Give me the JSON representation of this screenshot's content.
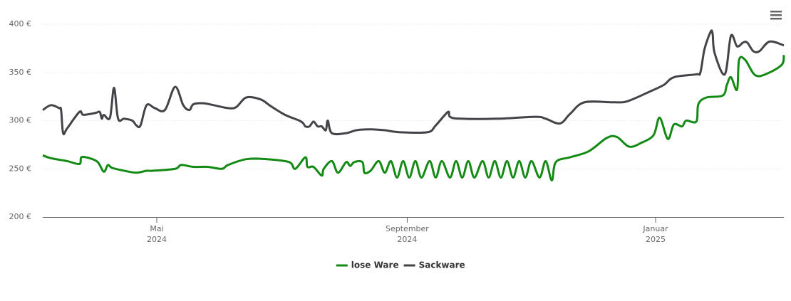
{
  "chart_data": {
    "type": "line",
    "xlim": [
      "2024-03-06",
      "2025-03-05"
    ],
    "ylim": [
      200,
      400
    ],
    "yticks": [
      {
        "value": 200,
        "label": "200 €"
      },
      {
        "value": 250,
        "label": "250 €"
      },
      {
        "value": 300,
        "label": "300 €"
      },
      {
        "value": 350,
        "label": "350 €"
      },
      {
        "value": 400,
        "label": "400 €"
      }
    ],
    "xticks": [
      {
        "value": "2024-05",
        "label": [
          "Mai",
          "2024"
        ]
      },
      {
        "value": "2024-09",
        "label": [
          "September",
          "2024"
        ]
      },
      {
        "value": "2025-01",
        "label": [
          "Januar",
          "2025"
        ]
      }
    ],
    "grid": true,
    "legend": "bottom",
    "series": [
      {
        "name": "lose Ware",
        "color": "#138a14",
        "x": [
          "2024-03-06",
          "2024-03-10",
          "2024-03-18",
          "2024-03-24",
          "2024-03-25",
          "2024-03-29",
          "2024-04-02",
          "2024-04-05",
          "2024-04-07",
          "2024-04-09",
          "2024-04-15",
          "2024-04-21",
          "2024-04-26",
          "2024-04-29",
          "2024-05-10",
          "2024-05-13",
          "2024-05-19",
          "2024-05-26",
          "2024-06-02",
          "2024-06-05",
          "2024-06-14",
          "2024-06-24",
          "2024-07-05",
          "2024-07-08",
          "2024-07-13",
          "2024-07-14",
          "2024-07-17",
          "2024-07-21",
          "2024-07-22",
          "2024-07-26",
          "2024-07-29",
          "2024-08-02",
          "2024-08-04",
          "2024-08-06",
          "2024-08-10",
          "2024-08-11",
          "2024-08-14",
          "2024-08-18",
          "2024-08-21",
          "2024-08-24",
          "2024-08-27",
          "2024-08-30",
          "2024-09-02",
          "2024-09-05",
          "2024-09-08",
          "2024-09-12",
          "2024-09-15",
          "2024-09-18",
          "2024-09-22",
          "2024-09-25",
          "2024-09-28",
          "2024-10-01",
          "2024-10-04",
          "2024-10-08",
          "2024-10-11",
          "2024-10-14",
          "2024-10-17",
          "2024-10-20",
          "2024-10-23",
          "2024-10-26",
          "2024-10-29",
          "2024-11-01",
          "2024-11-05",
          "2024-11-08",
          "2024-11-11",
          "2024-11-13",
          "2024-11-20",
          "2024-11-29",
          "2024-12-08",
          "2024-12-13",
          "2024-12-19",
          "2024-12-25",
          "2024-12-31",
          "2025-01-03",
          "2025-01-07",
          "2025-01-10",
          "2025-01-14",
          "2025-01-16",
          "2025-01-21",
          "2025-01-22",
          "2025-01-26",
          "2025-02-03",
          "2025-02-05",
          "2025-02-07",
          "2025-02-10",
          "2025-02-11",
          "2025-02-14",
          "2025-02-19",
          "2025-02-25",
          "2025-03-04",
          "2025-03-05"
        ],
        "values": [
          264,
          261,
          258,
          255,
          262,
          261,
          257,
          247,
          254,
          251,
          248,
          246,
          248,
          248,
          250,
          254,
          252,
          252,
          250,
          254,
          260,
          260,
          257,
          250,
          262,
          252,
          252,
          243,
          250,
          258,
          246,
          257,
          253,
          257,
          257,
          246,
          248,
          258,
          246,
          258,
          241,
          258,
          241,
          258,
          241,
          258,
          241,
          258,
          241,
          258,
          241,
          258,
          241,
          258,
          241,
          258,
          241,
          258,
          241,
          258,
          241,
          258,
          241,
          258,
          238,
          257,
          262,
          268,
          282,
          283,
          273,
          277,
          285,
          303,
          281,
          296,
          294,
          300,
          299,
          317,
          324,
          326,
          337,
          345,
          332,
          363,
          363,
          347,
          349,
          358,
          368
        ]
      },
      {
        "name": "Sackware",
        "color": "#434348",
        "x": [
          "2024-03-06",
          "2024-03-10",
          "2024-03-14",
          "2024-03-15",
          "2024-03-16",
          "2024-03-18",
          "2024-03-24",
          "2024-03-26",
          "2024-04-01",
          "2024-04-03",
          "2024-04-04",
          "2024-04-05",
          "2024-04-08",
          "2024-04-10",
          "2024-04-12",
          "2024-04-15",
          "2024-04-19",
          "2024-04-21",
          "2024-04-23",
          "2024-04-26",
          "2024-04-30",
          "2024-05-05",
          "2024-05-10",
          "2024-05-14",
          "2024-05-17",
          "2024-05-19",
          "2024-05-24",
          "2024-05-29",
          "2024-06-05",
          "2024-06-09",
          "2024-06-14",
          "2024-06-21",
          "2024-06-26",
          "2024-07-03",
          "2024-07-10",
          "2024-07-12",
          "2024-07-13",
          "2024-07-15",
          "2024-07-17",
          "2024-07-19",
          "2024-07-21",
          "2024-07-23",
          "2024-07-24",
          "2024-07-26",
          "2024-08-02",
          "2024-08-07",
          "2024-08-14",
          "2024-08-21",
          "2024-08-28",
          "2024-09-11",
          "2024-09-15",
          "2024-09-21",
          "2024-09-22",
          "2024-09-27",
          "2024-10-16",
          "2024-11-03",
          "2024-11-08",
          "2024-11-15",
          "2024-11-20",
          "2024-11-27",
          "2024-12-11",
          "2024-12-18",
          "2024-12-29",
          "2025-01-05",
          "2025-01-10",
          "2025-01-21",
          "2025-01-23",
          "2025-01-25",
          "2025-01-28",
          "2025-01-29",
          "2025-01-30",
          "2025-02-04",
          "2025-02-07",
          "2025-02-10",
          "2025-02-13",
          "2025-02-15",
          "2025-02-18",
          "2025-02-21",
          "2025-02-26",
          "2025-03-05"
        ],
        "values": [
          311,
          316,
          313,
          311,
          287,
          292,
          309,
          306,
          308,
          309,
          302,
          306,
          303,
          334,
          302,
          302,
          300,
          295,
          295,
          316,
          313,
          311,
          335,
          316,
          311,
          317,
          318,
          316,
          313,
          314,
          324,
          322,
          315,
          306,
          300,
          297,
          294,
          294,
          299,
          294,
          294,
          290,
          300,
          287,
          287,
          290,
          291,
          290,
          288,
          288,
          295,
          309,
          304,
          302,
          302,
          304,
          302,
          297,
          307,
          319,
          319,
          320,
          330,
          337,
          345,
          348,
          350,
          374,
          392,
          390,
          370,
          348,
          388,
          377,
          381,
          381,
          372,
          372,
          382,
          378
        ]
      }
    ]
  }
}
